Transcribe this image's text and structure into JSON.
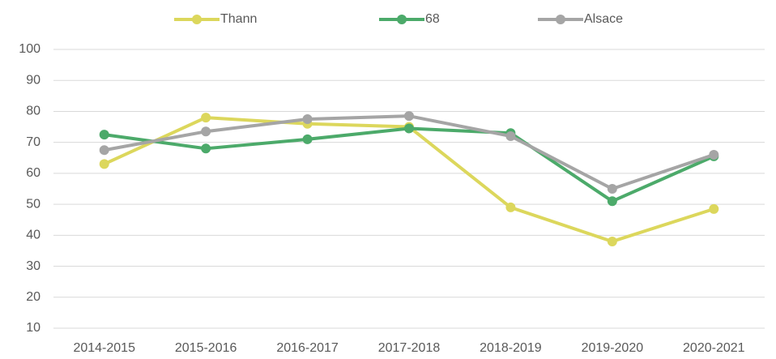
{
  "chart_data": {
    "type": "line",
    "categories": [
      "2014-2015",
      "2015-2016",
      "2016-2017",
      "2017-2018",
      "2018-2019",
      "2019-2020",
      "2020-2021"
    ],
    "series": [
      {
        "name": "Thann",
        "color": "#dcd75c",
        "values": [
          63,
          78,
          76,
          75,
          49,
          38,
          48.5
        ]
      },
      {
        "name": "68",
        "color": "#4caa6a",
        "values": [
          72.5,
          68,
          71,
          74.5,
          73,
          51,
          65.5
        ]
      },
      {
        "name": "Alsace",
        "color": "#a5a5a5",
        "values": [
          67.5,
          73.5,
          77.5,
          78.5,
          72,
          55,
          66
        ]
      }
    ],
    "ylim": [
      10,
      100
    ],
    "yticks": [
      10,
      20,
      30,
      40,
      50,
      60,
      70,
      80,
      90,
      100
    ],
    "grid": true,
    "legend": "top"
  }
}
